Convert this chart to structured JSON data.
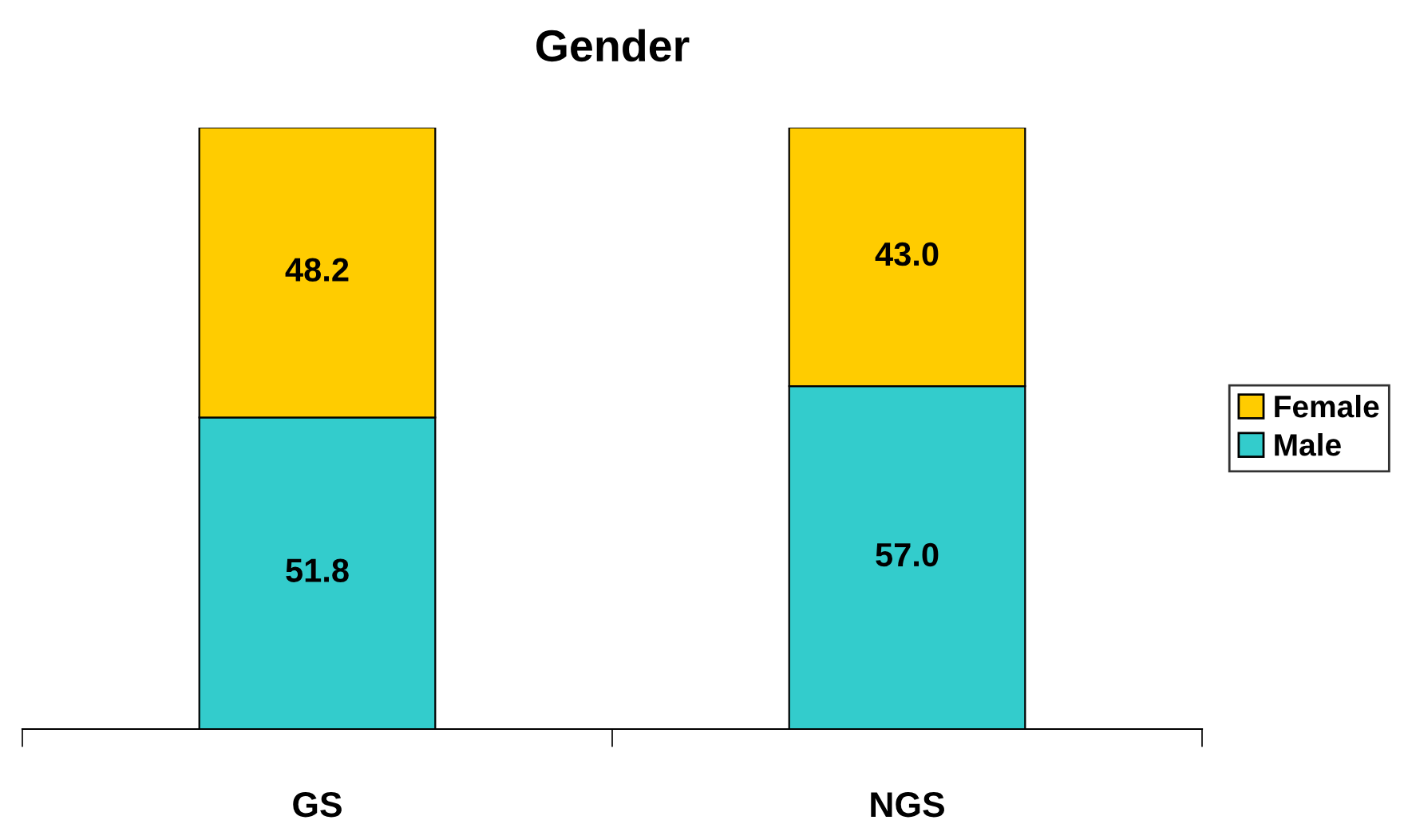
{
  "chart_data": {
    "type": "bar",
    "title": "Gender",
    "categories": [
      "GS",
      "NGS"
    ],
    "stacked": true,
    "series": [
      {
        "name": "Male",
        "color": "#33cccc",
        "values": [
          51.8,
          57.0
        ],
        "value_labels": [
          "51.8",
          "57.0"
        ]
      },
      {
        "name": "Female",
        "color": "#ffcc00",
        "values": [
          48.2,
          43.0
        ],
        "value_labels": [
          "48.2",
          "43.0"
        ]
      }
    ],
    "ylim": [
      0,
      100
    ],
    "legend": "right",
    "grid": false,
    "tick_labels": "x"
  }
}
